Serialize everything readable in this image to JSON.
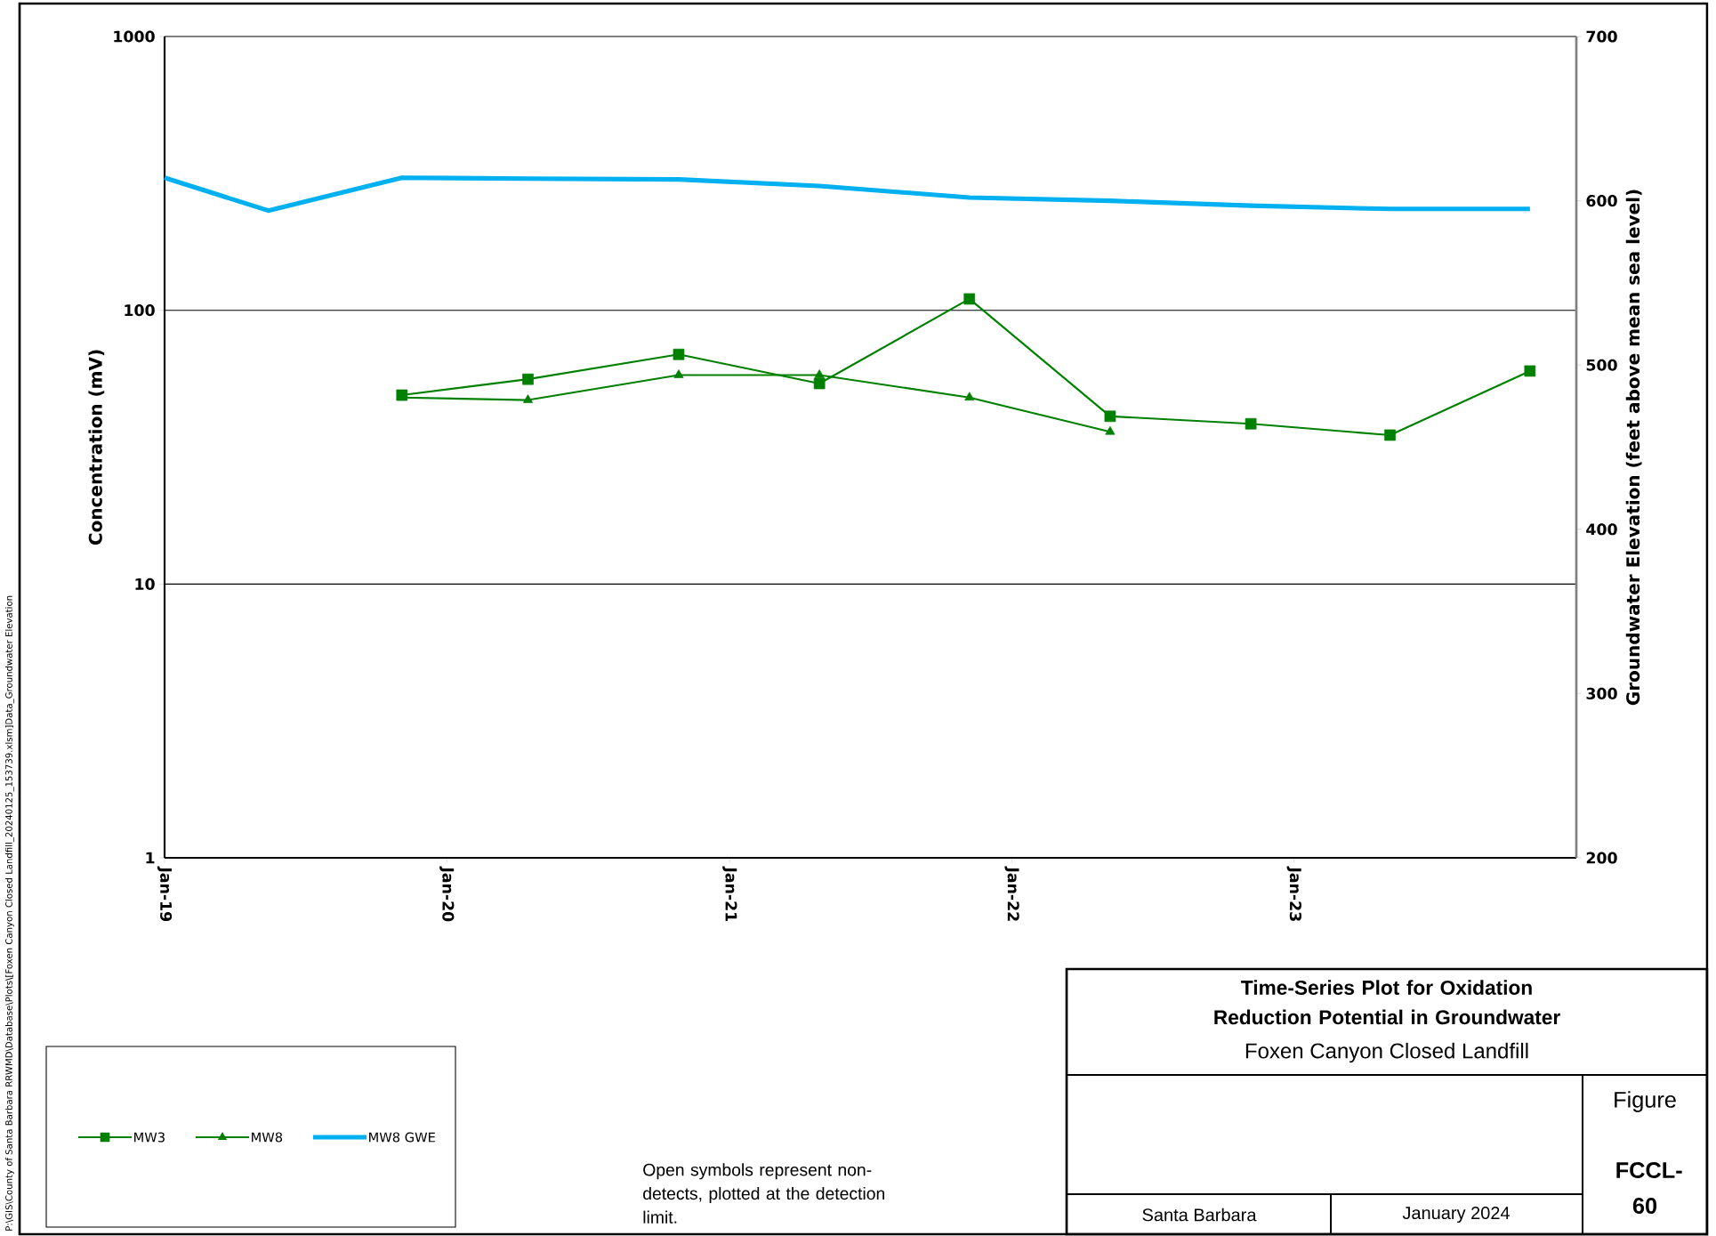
{
  "chart_data": {
    "type": "line",
    "title": "Time-Series Plot for Oxidation Reduction Potential in Groundwater",
    "subtitle": "Foxen Canyon Closed Landfill",
    "ylabel": "Concentration (mV)",
    "y2label": "Groundwater Elevation (feet above mean sea level)",
    "xlim": [
      "2019-01-01",
      "2024-01-01"
    ],
    "xticks": [
      {
        "value": "2019-01-01",
        "label": "Jan-19"
      },
      {
        "value": "2020-01-01",
        "label": "Jan-20"
      },
      {
        "value": "2021-01-01",
        "label": "Jan-21"
      },
      {
        "value": "2022-01-01",
        "label": "Jan-22"
      },
      {
        "value": "2023-01-01",
        "label": "Jan-23"
      }
    ],
    "ylim": [
      1,
      1000
    ],
    "yticks": [
      1,
      10,
      100,
      1000
    ],
    "y2lim": [
      200,
      700
    ],
    "y2ticks": [
      200,
      300,
      400,
      500,
      600,
      700
    ],
    "log": "y",
    "grid": "y",
    "legend": "bottom left",
    "annotations": [
      "Open symbols represent non-detects, plotted at the detection limit.",
      "Santa Barbara",
      "January 2024",
      "Figure",
      "FCCL-60",
      "P:\\GIS\\County of Santa Barbara RRWMD\\Database\\Plots\\[Foxen Canyon Closed Landfill_20240125_153739.xlsm]Data_Groundwater Elevation"
    ],
    "series": [
      {
        "name": "MW3",
        "color": "#008000",
        "marker": "square",
        "x": [
          "2019-11-04",
          "2020-04-15",
          "2020-10-27",
          "2021-04-27",
          "2021-11-07",
          "2022-05-08",
          "2022-11-06",
          "2023-05-05",
          "2023-11-02"
        ],
        "values": [
          49,
          56,
          69,
          54,
          110,
          41,
          38.5,
          35,
          60
        ]
      },
      {
        "name": "MW8",
        "color": "#008000",
        "marker": "triangle",
        "x": [
          "2019-11-04",
          "2020-04-15",
          "2020-10-27",
          "2021-04-27",
          "2021-11-07",
          "2022-05-08"
        ],
        "values": [
          48,
          47,
          58,
          58,
          48,
          36
        ]
      },
      {
        "name": "MW8 GWE",
        "color": "#00b0f0",
        "marker": "none",
        "axis": "y2",
        "x": [
          "2019-01-01",
          "2019-05-15",
          "2019-11-04",
          "2020-04-15",
          "2020-10-27",
          "2021-04-27",
          "2021-11-07",
          "2022-05-08",
          "2022-11-06",
          "2023-05-05",
          "2023-11-02"
        ],
        "values": [
          614,
          594,
          614,
          613.5,
          613,
          609,
          602,
          600,
          597,
          595,
          595
        ]
      }
    ]
  }
}
